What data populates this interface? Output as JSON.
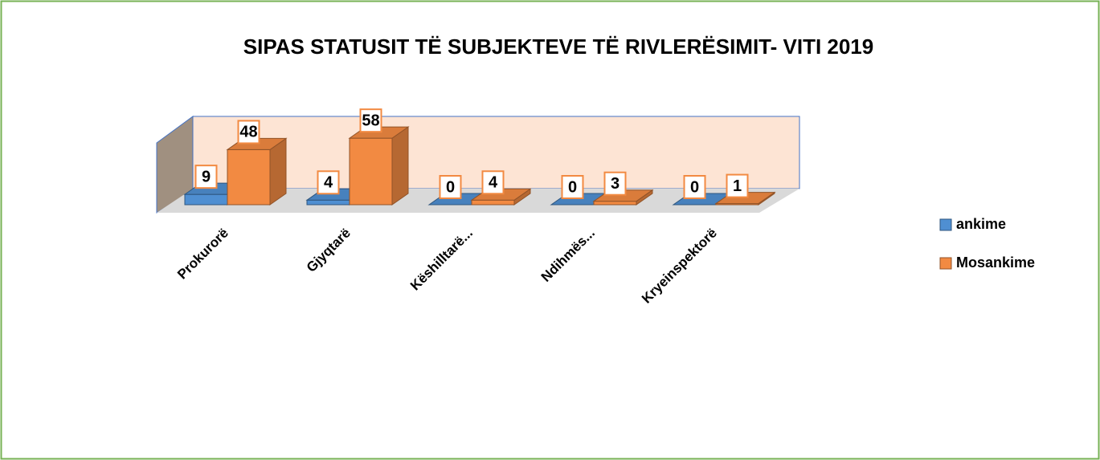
{
  "chart_data": {
    "type": "bar3d",
    "title": "SIPAS STATUSIT TË SUBJEKTEVE TË RIVLERËSIMIT- VITI 2019",
    "categories": [
      "Prokurorë",
      "Gjyqtarë",
      "Këshilltarë...",
      "Ndihmës...",
      "Kryeinspektorë"
    ],
    "series": [
      {
        "name": "ankime",
        "color": "#4f8fd2",
        "values": [
          9,
          4,
          0,
          0,
          0
        ]
      },
      {
        "name": "Mosankime",
        "color": "#f28a42",
        "values": [
          48,
          58,
          4,
          3,
          1
        ]
      }
    ],
    "ylim": [
      0,
      70
    ],
    "legend": "right"
  }
}
